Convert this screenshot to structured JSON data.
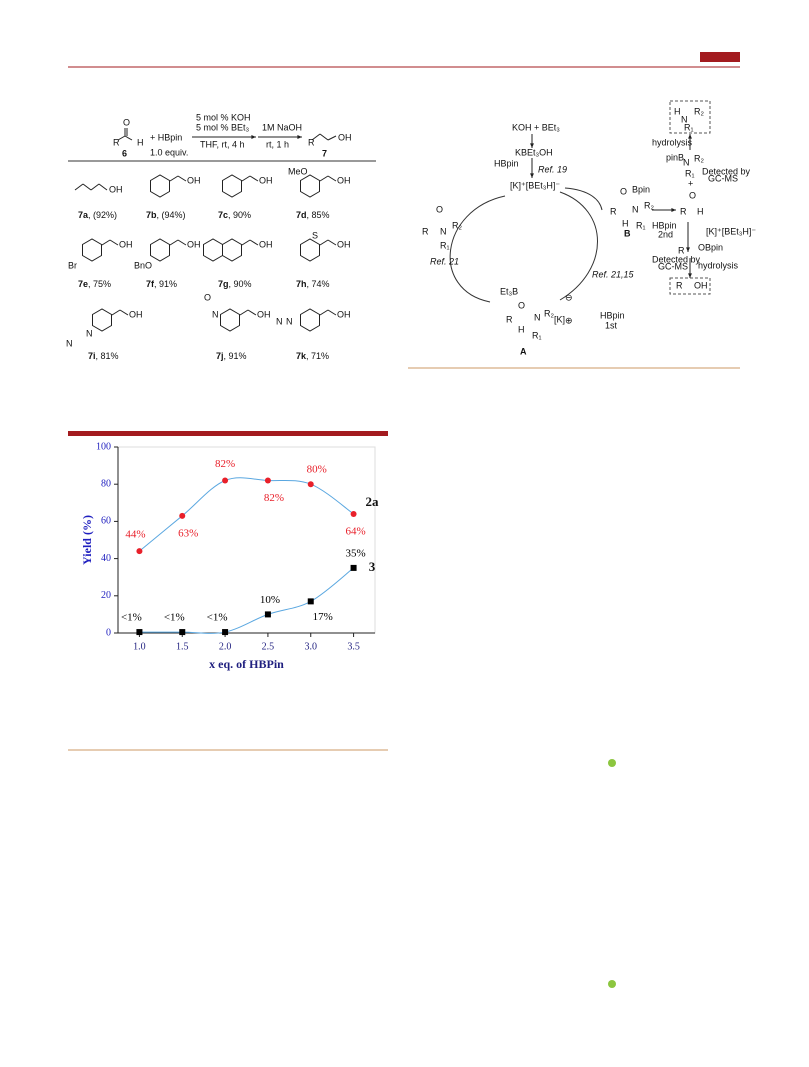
{
  "scheme": {
    "reactant": {
      "label": "6",
      "atoms": [
        "O",
        "R",
        "H"
      ]
    },
    "reagent": "+ HBpin",
    "equiv": "1.0 equiv.",
    "conditions1": [
      "5 mol % KOH",
      "5 mol % BEt₃",
      "THF, rt, 4 h"
    ],
    "conditions2": [
      "1M NaOH",
      "rt, 1 h"
    ],
    "product": {
      "label": "7",
      "atoms": [
        "R",
        "OH"
      ]
    },
    "entries": [
      {
        "id": "7a",
        "yield": ", (92%)",
        "groups": [
          "OH"
        ]
      },
      {
        "id": "7b",
        "yield": ", (94%)",
        "groups": [
          "OH"
        ]
      },
      {
        "id": "7c",
        "yield": ", 90%",
        "groups": [
          "OH"
        ]
      },
      {
        "id": "7d",
        "yield": ", 85%",
        "groups": [
          "MeO",
          "OH"
        ]
      },
      {
        "id": "7e",
        "yield": ", 75%",
        "groups": [
          "Br",
          "OH"
        ]
      },
      {
        "id": "7f",
        "yield": ", 91%",
        "groups": [
          "BnO",
          "OH"
        ]
      },
      {
        "id": "7g",
        "yield": ", 90%",
        "groups": [
          "OH"
        ]
      },
      {
        "id": "7h",
        "yield": ", 74%",
        "groups": [
          "S",
          "OH"
        ]
      },
      {
        "id": "7i",
        "yield": ", 81%",
        "groups": [
          "N",
          "N",
          "OH"
        ]
      },
      {
        "id": "7j",
        "yield": ", 91%",
        "groups": [
          "O",
          "N",
          "OH"
        ]
      },
      {
        "id": "7k",
        "yield": ", 71%",
        "groups": [
          "N",
          "N",
          "OH"
        ]
      }
    ]
  },
  "cycle": {
    "start": "KOH + BEt₃",
    "kbet": "KBEt₃OH",
    "hbpin": "HBpin",
    "ref19": "Ref. 19",
    "catalyst": "[K]⁺[BEt₃H]⁻",
    "ref21": "Ref. 21",
    "ref2115": "Ref. 21,15",
    "first": [
      "HBpin",
      "1st"
    ],
    "second": [
      "HBpin",
      "2nd"
    ],
    "label_a": "A",
    "label_b": "B",
    "k": "[K]",
    "minus": "⊖",
    "plus_charge": "⊕",
    "amide": [
      "O",
      "R",
      "N",
      "R₂",
      "R₁"
    ],
    "int_a": [
      "Et₃B",
      "O",
      "R",
      "H",
      "N",
      "R₂",
      "R₁"
    ],
    "int_b": [
      "O",
      "Bpin",
      "R",
      "H",
      "N",
      "R₂",
      "R₁"
    ],
    "aldehyde": [
      "O",
      "R",
      "H"
    ],
    "plus": "+",
    "catalyst2": "[K]⁺[BEt₃H]⁻",
    "aminoborane": [
      "pinB",
      "N",
      "R₂",
      "R₁"
    ],
    "amine": [
      "H",
      "N",
      "R₂",
      "R₁"
    ],
    "boronate": [
      "R",
      "OBpin"
    ],
    "alcohol": [
      "R",
      "OH"
    ],
    "hydrolysis1": "hydrolysis",
    "hydrolysis2": "hydrolysis",
    "detected1": [
      "Detected by",
      "GC-MS"
    ],
    "detected2": [
      "Detected by",
      "GC-MS"
    ]
  },
  "chart_data": {
    "type": "line",
    "x": [
      1,
      1.5,
      2,
      2.5,
      3,
      3.5
    ],
    "xlim": [
      0.75,
      3.75
    ],
    "xticks": [
      {
        "value": 1,
        "label": "1.0"
      },
      {
        "value": 1.5,
        "label": "1.5"
      },
      {
        "value": 2,
        "label": "2.0"
      },
      {
        "value": 2.5,
        "label": "2.5"
      },
      {
        "value": 3,
        "label": "3.0"
      },
      {
        "value": 3.5,
        "label": "3.5"
      }
    ],
    "ylim": [
      0,
      100
    ],
    "yticks": [
      0,
      20,
      40,
      60,
      80,
      100
    ],
    "xlabel": "x eq. of HBPin",
    "ylabel": "Yield (%)",
    "line_color": "#5aa7e0",
    "series": [
      {
        "name": "2a",
        "color": "#e8202a",
        "marker": "circle",
        "values": [
          44,
          63,
          82,
          82,
          80,
          64
        ],
        "value_labels": [
          "44%",
          "63%",
          "82%",
          "82%",
          "80%",
          "64%"
        ]
      },
      {
        "name": "3",
        "color": "#000000",
        "marker": "square",
        "values": [
          0.5,
          0.5,
          0.5,
          10,
          17,
          35
        ],
        "value_labels": [
          "<1%",
          "<1%",
          "<1%",
          "10%",
          "17%",
          "35%"
        ]
      }
    ]
  }
}
